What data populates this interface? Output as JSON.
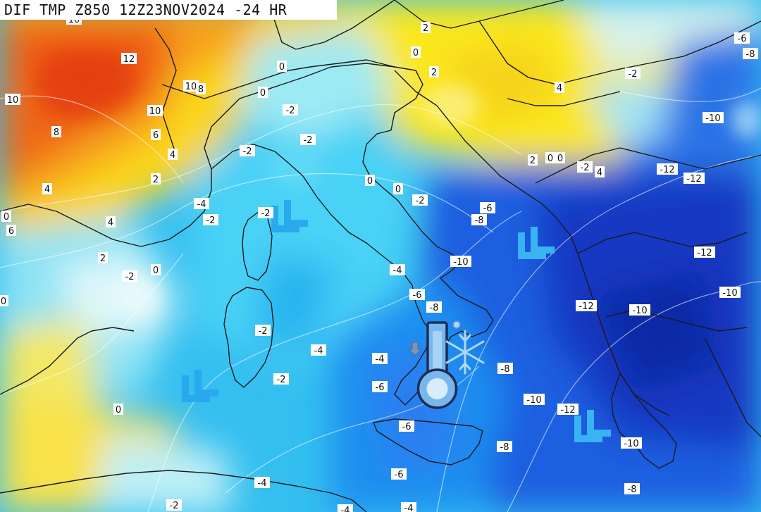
{
  "header": {
    "title": "DIF TMP Z850 12Z23NOV2024 -24 HR"
  },
  "colors": {
    "warm_red": "#ee5a14",
    "warm_orange": "#f6a01c",
    "warm_yellow": "#fbe21f",
    "neutral": "#e9fbfd",
    "cool_light": "#7fe0f2",
    "cool_cyan": "#2fc6f0",
    "cool_mid": "#1ea0ee",
    "cold_blue": "#1a5ee0",
    "cold_deep": "#1838c4",
    "boundary_line": "#222222"
  },
  "contour_labels": [
    {
      "text": "10"
    },
    {
      "text": "12"
    },
    {
      "text": "10"
    },
    {
      "text": "8"
    },
    {
      "text": "10"
    },
    {
      "text": "8"
    },
    {
      "text": "10"
    },
    {
      "text": "6"
    },
    {
      "text": "4"
    },
    {
      "text": "2"
    },
    {
      "text": "4"
    },
    {
      "text": "0"
    },
    {
      "text": "6"
    },
    {
      "text": "4"
    },
    {
      "text": "2"
    },
    {
      "text": "-2"
    },
    {
      "text": "0"
    },
    {
      "text": "0"
    },
    {
      "text": "0"
    },
    {
      "text": "0"
    },
    {
      "text": "2"
    },
    {
      "text": "0"
    },
    {
      "text": "2"
    },
    {
      "text": "4"
    },
    {
      "text": "0"
    },
    {
      "text": "-2"
    },
    {
      "text": "-2"
    },
    {
      "text": "-2"
    },
    {
      "text": "0"
    },
    {
      "text": "0"
    },
    {
      "text": "-2"
    },
    {
      "text": "2"
    },
    {
      "text": "0"
    },
    {
      "text": "-2"
    },
    {
      "text": "4"
    },
    {
      "text": "-6"
    },
    {
      "text": "-8"
    },
    {
      "text": "-2"
    },
    {
      "text": "-10"
    },
    {
      "text": "-12"
    },
    {
      "text": "-12"
    },
    {
      "text": "-4"
    },
    {
      "text": "-2"
    },
    {
      "text": "-2"
    },
    {
      "text": "-6"
    },
    {
      "text": "-8"
    },
    {
      "text": "-4"
    },
    {
      "text": "-10"
    },
    {
      "text": "-12"
    },
    {
      "text": "-6"
    },
    {
      "text": "-8"
    },
    {
      "text": "-12"
    },
    {
      "text": "-10"
    },
    {
      "text": "-10"
    },
    {
      "text": "-2"
    },
    {
      "text": "-4"
    },
    {
      "text": "-4"
    },
    {
      "text": "-6"
    },
    {
      "text": "-2"
    },
    {
      "text": "-8"
    },
    {
      "text": "-10"
    },
    {
      "text": "-12"
    },
    {
      "text": "-6"
    },
    {
      "text": "-8"
    },
    {
      "text": "-10"
    },
    {
      "text": "-6"
    },
    {
      "text": "-4"
    },
    {
      "text": "-8"
    },
    {
      "text": "-2"
    },
    {
      "text": "-4"
    },
    {
      "text": "-4"
    },
    {
      "text": "0"
    }
  ],
  "overlays": {
    "thermometer": "thermometer-icon",
    "snowflake": "snowflake-icon",
    "down_arrow": "down-arrow-icon",
    "wind_chevrons": "double-chevron-icon"
  }
}
